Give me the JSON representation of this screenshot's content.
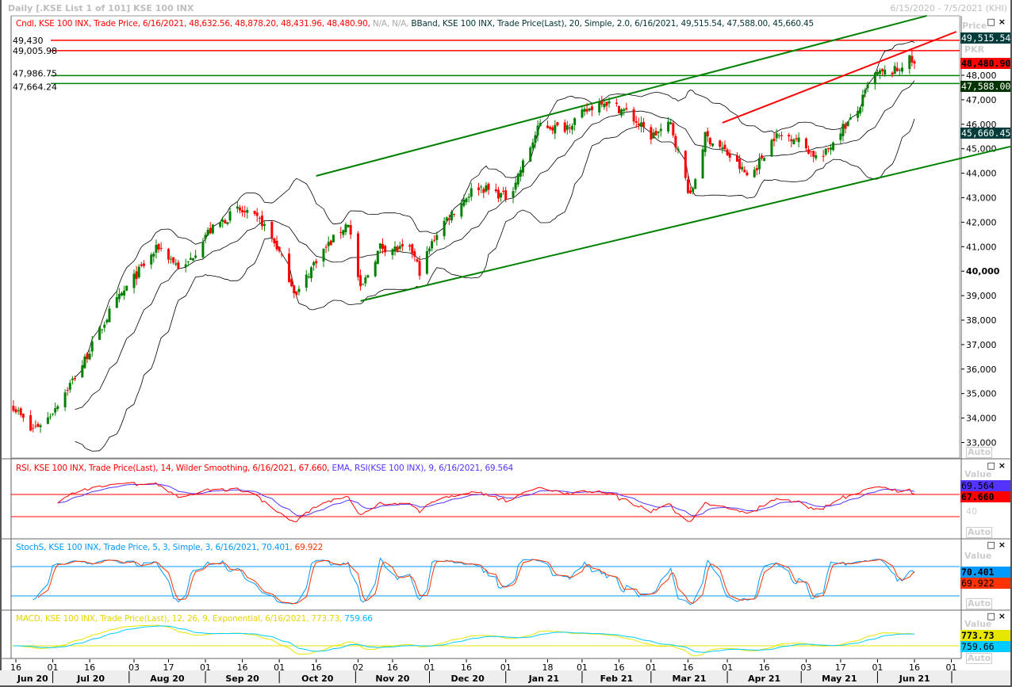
{
  "window": {
    "title": "Daily [.KSE List 1 of 101] KSE 100 INX",
    "date_range": "6/15/2020 - 7/5/2021 (KHI)"
  },
  "price_pane": {
    "legend_cndl": "Cndl, KSE 100 INX, Trade Price, 6/16/2021, 48,632.56, 48,878.20, 48,431.96, 48,480.90,",
    "legend_na": " N/A, N/A,",
    "legend_bband": " BBand, KSE 100 INX, Trade Price(Last),  20, Simple, 2.0, 6/16/2021, 49,515.54, 47,588.00, 45,660.45",
    "axis_title": "Price",
    "axis_unit": "PKR",
    "value_boxes": {
      "bb_upper": "49,515.54",
      "last": "48,480.90",
      "bb_mid": "47,588.00",
      "bb_lower": "45,660.45"
    },
    "auto_label": "Auto",
    "hlines": [
      {
        "value": 49430,
        "label": "49,430",
        "color": "#ff0000"
      },
      {
        "value": 49005.98,
        "label": "49,005.98",
        "color": "#ff0000"
      },
      {
        "value": 47986.75,
        "label": "47,986.75",
        "color": "#008000"
      },
      {
        "value": 47664.24,
        "label": "47,664.24",
        "color": "#008000"
      }
    ]
  },
  "rsi_pane": {
    "legend_rsi": "RSI, KSE 100 INX, Trade Price(Last),  14, Wilder Smoothing, 6/16/2021, 67.660,",
    "legend_ema": " EMA, RSI(KSE 100 INX),  9, 6/16/2021, 69.564",
    "axis_title": "Value",
    "tick_40": "40",
    "value_boxes": {
      "ema": "69.564",
      "rsi": "67.660"
    },
    "auto_label": "Auto"
  },
  "stoch_pane": {
    "legend_k": "StochS, KSE 100 INX, Trade Price,  5, 3, Simple, 3, 6/16/2021, 70.401,",
    "legend_d": " 69.922",
    "axis_title": "Value",
    "value_boxes": {
      "k": "70.401",
      "d": "69.922"
    },
    "auto_label": "Auto"
  },
  "macd_pane": {
    "legend_macd": "MACD, KSE 100 INX, Trade Price(Last),  12, 26, 9, Exponential, 6/16/2021, 773.73,",
    "legend_signal": " 759.66",
    "axis_title": "Value",
    "value_boxes": {
      "macd": "773.73",
      "signal": "759.66"
    },
    "auto_label": "Auto"
  },
  "chart_data": {
    "type": "candlestick",
    "y_ticks": [
      "33,000",
      "34,000",
      "35,000",
      "36,000",
      "37,000",
      "38,000",
      "39,000",
      "40,000",
      "41,000",
      "42,000",
      "43,000",
      "44,000",
      "45,000",
      "46,000",
      "47,000",
      "48,000"
    ],
    "ylim": [
      32500,
      50500
    ],
    "colors": {
      "up": "#008000",
      "down": "#ff0000",
      "bbands": "#000000",
      "rsi": "#ff0000",
      "rsi_ema": "#5533ff",
      "stoch_k": "#0099ff",
      "stoch_d": "#ff3300",
      "macd": "#e6e600",
      "macd_signal": "#00ccff"
    },
    "close_keypoints": [
      [
        "2020-06-15",
        34500
      ],
      [
        "2020-06-22",
        33500
      ],
      [
        "2020-06-29",
        34000
      ],
      [
        "2020-07-12",
        36000
      ],
      [
        "2020-07-25",
        38500
      ],
      [
        "2020-08-05",
        40000
      ],
      [
        "2020-08-13",
        41000
      ],
      [
        "2020-08-23",
        40000
      ],
      [
        "2020-09-01",
        41500
      ],
      [
        "2020-09-14",
        42500
      ],
      [
        "2020-09-24",
        42000
      ],
      [
        "2020-09-30",
        41000
      ],
      [
        "2020-10-08",
        39000
      ],
      [
        "2020-10-16",
        40500
      ],
      [
        "2020-10-29",
        42000
      ],
      [
        "2020-11-03",
        39200
      ],
      [
        "2020-11-11",
        41000
      ],
      [
        "2020-11-24",
        40800
      ],
      [
        "2020-11-27",
        40000
      ],
      [
        "2020-12-05",
        41800
      ],
      [
        "2020-12-20",
        43500
      ],
      [
        "2021-01-02",
        43000
      ],
      [
        "2021-01-15",
        46000
      ],
      [
        "2021-01-24",
        45800
      ],
      [
        "2021-02-09",
        47000
      ],
      [
        "2021-02-19",
        46500
      ],
      [
        "2021-03-01",
        45500
      ],
      [
        "2021-03-09",
        46000
      ],
      [
        "2021-03-17",
        43000
      ],
      [
        "2021-03-23",
        45500
      ],
      [
        "2021-03-30",
        45000
      ],
      [
        "2021-04-10",
        43800
      ],
      [
        "2021-04-20",
        45500
      ],
      [
        "2021-04-28",
        45500
      ],
      [
        "2021-05-09",
        44500
      ],
      [
        "2021-05-17",
        45800
      ],
      [
        "2021-05-23",
        46300
      ],
      [
        "2021-05-30",
        48000
      ],
      [
        "2021-06-09",
        48200
      ],
      [
        "2021-06-13",
        48700
      ],
      [
        "2021-06-16",
        48480.9
      ]
    ],
    "trendlines": [
      {
        "color": "#008000",
        "from": [
          "2020-10-16",
          43890
        ],
        "to": [
          "2021-06-21",
          50430
        ]
      },
      {
        "color": "#008000",
        "from": [
          "2020-11-03",
          38780
        ],
        "to": [
          "2021-07-25",
          45090
        ]
      },
      {
        "color": "#ff0000",
        "from": [
          "2021-03-30",
          46060
        ],
        "to": [
          "2021-07-03",
          49780
        ]
      }
    ],
    "rsi_levels": [
      70,
      30
    ],
    "stoch_levels": [
      80,
      20
    ],
    "x_ticks": [
      [
        "2020-06-16",
        "16"
      ],
      [
        "2020-07-01",
        "01"
      ],
      [
        "2020-07-16",
        "16"
      ],
      [
        "2020-08-03",
        "03"
      ],
      [
        "2020-08-17",
        "17"
      ],
      [
        "2020-09-01",
        "01"
      ],
      [
        "2020-09-16",
        "16"
      ],
      [
        "2020-10-01",
        "01"
      ],
      [
        "2020-10-16",
        "16"
      ],
      [
        "2020-11-02",
        "02"
      ],
      [
        "2020-11-16",
        "16"
      ],
      [
        "2020-12-01",
        "01"
      ],
      [
        "2020-12-16",
        "16"
      ],
      [
        "2021-01-01",
        "01"
      ],
      [
        "2021-01-18",
        "18"
      ],
      [
        "2021-02-01",
        "01"
      ],
      [
        "2021-02-16",
        "16"
      ],
      [
        "2021-03-01",
        "01"
      ],
      [
        "2021-03-16",
        "16"
      ],
      [
        "2021-04-01",
        "01"
      ],
      [
        "2021-04-16",
        "16"
      ],
      [
        "2021-05-03",
        "03"
      ],
      [
        "2021-05-17",
        "17"
      ],
      [
        "2021-06-01",
        "01"
      ],
      [
        "2021-06-16",
        "16"
      ],
      [
        "2021-07-01",
        "01"
      ]
    ],
    "months": [
      [
        "2020-06-01",
        "Jun 20"
      ],
      [
        "2020-07-01",
        "Jul 20"
      ],
      [
        "2020-08-01",
        "Aug 20"
      ],
      [
        "2020-09-01",
        "Sep 20"
      ],
      [
        "2020-10-01",
        "Oct 20"
      ],
      [
        "2020-11-01",
        "Nov 20"
      ],
      [
        "2020-12-01",
        "Dec 20"
      ],
      [
        "2021-01-01",
        "Jan 21"
      ],
      [
        "2021-02-01",
        "Feb 21"
      ],
      [
        "2021-03-01",
        "Mar 21"
      ],
      [
        "2021-04-01",
        "Apr 21"
      ],
      [
        "2021-05-01",
        "May 21"
      ],
      [
        "2021-06-01",
        "Jun 21"
      ]
    ]
  }
}
